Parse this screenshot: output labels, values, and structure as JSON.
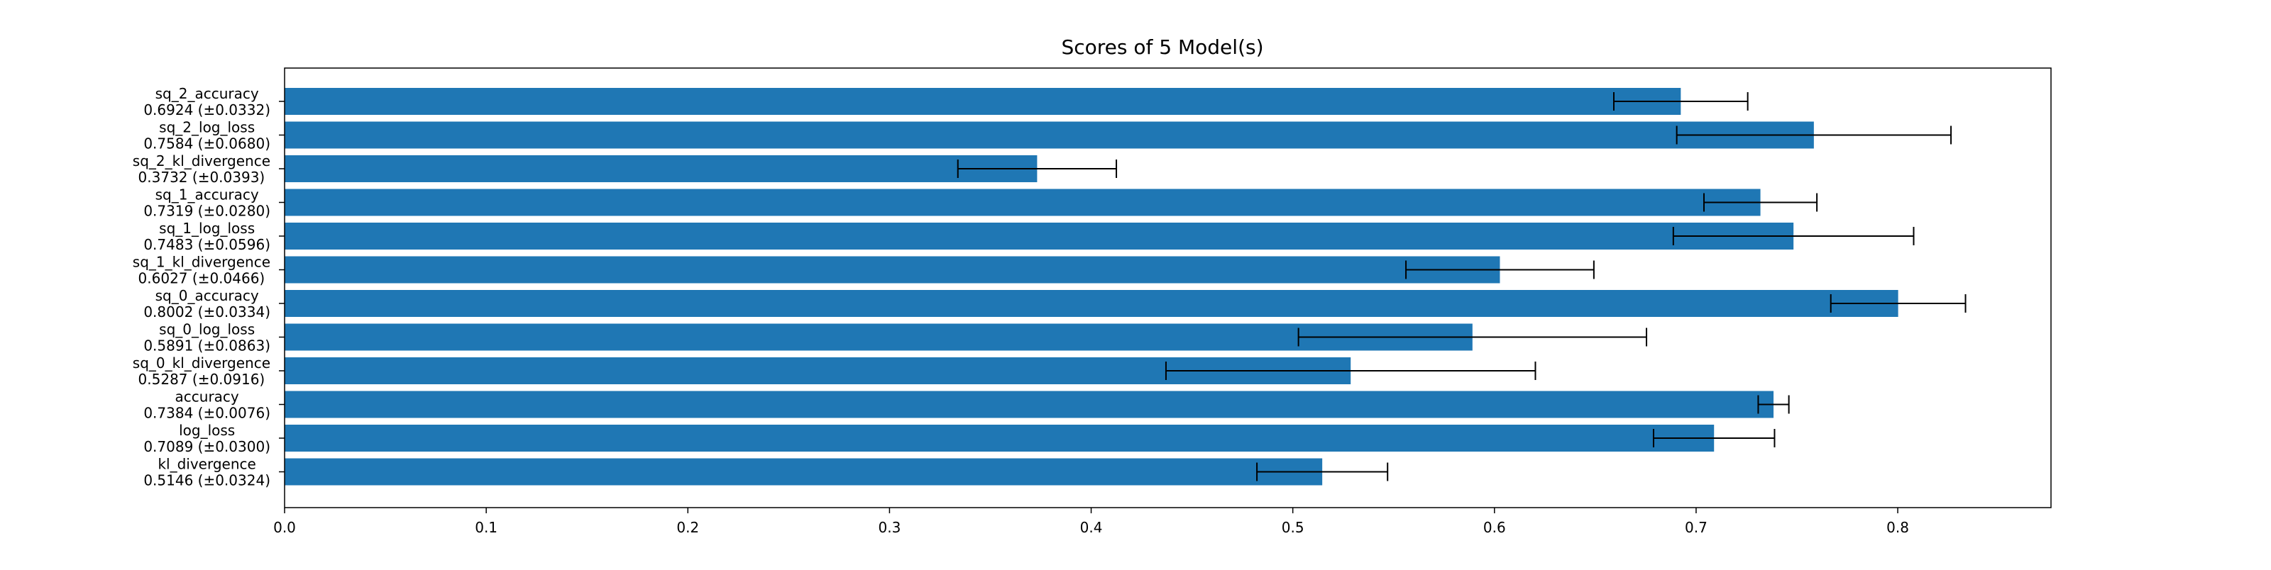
{
  "chart_data": {
    "type": "bar",
    "orientation": "horizontal",
    "title": "Scores of 5 Model(s)",
    "xlabel": "",
    "ylabel": "",
    "xlim": [
      0,
      0.876
    ],
    "grid": false,
    "bar_color": "#1f77b4",
    "errorbar_color": "#000000",
    "x_ticks": [
      "0.0",
      "0.1",
      "0.2",
      "0.3",
      "0.4",
      "0.5",
      "0.6",
      "0.7",
      "0.8"
    ],
    "categories": [
      "sq_2_accuracy",
      "sq_2_log_loss",
      "sq_2_kl_divergence",
      "sq_1_accuracy",
      "sq_1_log_loss",
      "sq_1_kl_divergence",
      "sq_0_accuracy",
      "sq_0_log_loss",
      "sq_0_kl_divergence",
      "accuracy",
      "log_loss",
      "kl_divergence"
    ],
    "value_labels": [
      "0.6924 (±0.0332)",
      "0.7584 (±0.0680)",
      "0.3732 (±0.0393)",
      "0.7319 (±0.0280)",
      "0.7483 (±0.0596)",
      "0.6027 (±0.0466)",
      "0.8002 (±0.0334)",
      "0.5891 (±0.0863)",
      "0.5287 (±0.0916)",
      "0.7384 (±0.0076)",
      "0.7089 (±0.0300)",
      "0.5146 (±0.0324)"
    ],
    "values": [
      0.6924,
      0.7584,
      0.3732,
      0.7319,
      0.7483,
      0.6027,
      0.8002,
      0.5891,
      0.5287,
      0.7384,
      0.7089,
      0.5146
    ],
    "errors": [
      0.0332,
      0.068,
      0.0393,
      0.028,
      0.0596,
      0.0466,
      0.0334,
      0.0863,
      0.0916,
      0.0076,
      0.03,
      0.0324
    ]
  }
}
